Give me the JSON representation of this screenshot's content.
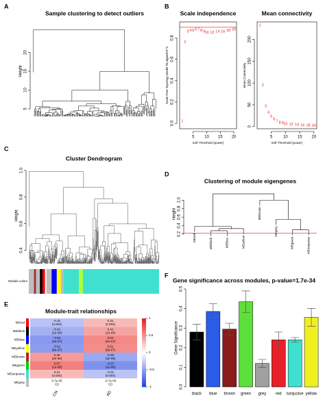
{
  "chart_data": [
    {
      "type": "dendrogram",
      "panel": "A",
      "title": "Sample clustering to detect outliers",
      "ylabel": "Height",
      "ylim": [
        3,
        27
      ],
      "yticks": [
        5,
        10,
        15,
        20
      ]
    },
    {
      "type": "scatter",
      "panel": "B",
      "title": "Scale independence",
      "xlabel": "Soft Threshold (power)",
      "ylabel": "Scale Free Topology Model Fit,signed R^2",
      "x": [
        1,
        2,
        3,
        4,
        5,
        6,
        7,
        8,
        9,
        10,
        12,
        14,
        16,
        18,
        20
      ],
      "values": [
        0.02,
        0.76,
        0.86,
        0.87,
        0.87,
        0.88,
        0.88,
        0.87,
        0.86,
        0.85,
        0.85,
        0.86,
        0.86,
        0.87,
        0.88
      ],
      "color": "#e41a1c",
      "hline": 0.9,
      "hline_color": "#e41a1c",
      "xlim": [
        0,
        21
      ],
      "xticks": [
        5,
        10,
        15,
        20
      ],
      "ylim": [
        -0.05,
        0.95
      ],
      "yticks": [
        {
          "value": 0,
          "label": "0.0"
        },
        0.2,
        0.4,
        0.6,
        0.8
      ]
    },
    {
      "type": "scatter",
      "title": "Mean connectivity",
      "xlabel": "Soft Threshold (power)",
      "ylabel": "Mean Connectivity",
      "x": [
        1,
        2,
        3,
        4,
        5,
        6,
        7,
        8,
        9,
        10,
        12,
        14,
        16,
        18,
        20
      ],
      "values": [
        232,
        95,
        47,
        33,
        23,
        17,
        12,
        9,
        8,
        6,
        5,
        4,
        3,
        3,
        2
      ],
      "color": "#e41a1c",
      "xlim": [
        0,
        21
      ],
      "xticks": [
        5,
        10,
        15,
        20
      ],
      "ylim": [
        -5,
        240
      ],
      "yticks": [
        0,
        50,
        100,
        150,
        200
      ]
    },
    {
      "type": "dendrogram",
      "panel": "C",
      "title": "Cluster Dendrogram",
      "ylabel": "Height",
      "colorbar_label": "Module colors",
      "ylim": [
        0.3,
        1.02
      ],
      "yticks": [
        0.4,
        0.6,
        0.8,
        {
          "value": 1,
          "label": "1.0"
        }
      ]
    },
    {
      "type": "tree",
      "panel": "D",
      "title": "Clustering of module eigengenes",
      "ylabel": "Height",
      "leaves": [
        "MEred",
        "MEblack",
        "MEblue",
        "MEyellow",
        "MEbrown",
        "MEgrey",
        "MEgreen",
        "MEturquoise"
      ],
      "merges": [
        {
          "left": 1,
          "right": 2,
          "height": 0.28
        },
        {
          "left": 8,
          "right": 3,
          "height": 0.33
        },
        {
          "left": 0,
          "right": 9,
          "height": 0.38
        },
        {
          "left": 6,
          "right": 7,
          "height": 0.3
        },
        {
          "left": 5,
          "right": 11,
          "height": 0.55
        },
        {
          "left": 4,
          "right": 12,
          "height": 1.0
        },
        {
          "left": 10,
          "right": 13,
          "height": 1.15
        }
      ],
      "cut_height": 0.22,
      "cut_color": "#e41a1c",
      "ylim": [
        0.15,
        1.2
      ],
      "yticks": [
        0.2,
        0.4,
        0.6,
        0.8,
        {
          "value": 1,
          "label": "1.0"
        }
      ]
    },
    {
      "type": "heatmap",
      "panel": "E",
      "title": "Module-trait relationships",
      "rows": [
        "MEred",
        "MEblack",
        "MEblue",
        "MEyellow",
        "MEbrown",
        "MEgreen",
        "MEturquoise",
        "MEgrey"
      ],
      "row_colors": [
        "#ff0000",
        "#000000",
        "#0000ff",
        "#ffff00",
        "#a52a2a",
        "#00cd00",
        "#40e0d0",
        "#bebebe"
      ],
      "columns": [
        "CN",
        "AD"
      ],
      "values": [
        [
          -0.31,
          0.31
        ],
        [
          -0.41,
          0.41
        ],
        [
          -0.53,
          0.53
        ],
        [
          -0.51,
          0.51
        ],
        [
          0.45,
          -0.45
        ],
        [
          0.57,
          -0.57
        ],
        [
          0.31,
          -0.31
        ],
        [
          9.7e-05,
          -9.7e-05
        ]
      ],
      "value_labels": [
        [
          "-0.31",
          "0.31"
        ],
        [
          "-0.41",
          "0.41"
        ],
        [
          "-0.53",
          "0.53"
        ],
        [
          "-0.51",
          "0.51"
        ],
        [
          "0.45",
          "-0.45"
        ],
        [
          "0.57",
          "-0.57"
        ],
        [
          "0.31",
          "-0.31"
        ],
        [
          "9.7e-05",
          "-9.7e-05"
        ]
      ],
      "p_labels": [
        [
          "(0.004)",
          "(0.004)"
        ],
        [
          "(1e-04)",
          "(1e-04)"
        ],
        [
          "(2e-07)",
          "(2e-07)"
        ],
        [
          "(8e-07)",
          "(8e-07)"
        ],
        [
          "(2e-05)",
          "(2e-05)"
        ],
        [
          "(1e-08)",
          "(1e-08)"
        ],
        [
          "(0.004)",
          "(0.004)"
        ],
        [
          "(1)",
          "(1)"
        ]
      ],
      "colors": [
        "#1f3fe0",
        "#ffffff",
        "#e8201c"
      ],
      "clim": [
        -1,
        1
      ],
      "cticks": [
        -1,
        -0.5,
        0,
        0.5,
        1
      ]
    },
    {
      "type": "bar",
      "panel": "F",
      "title": "Gene significance across modules, p-value=1.7e-34",
      "ylabel": "Gene Significance",
      "categories": [
        "black",
        "blue",
        "brown",
        "green",
        "grey",
        "red",
        "turquoise",
        "yellow"
      ],
      "values": [
        0.28,
        0.385,
        0.295,
        0.435,
        0.12,
        0.24,
        0.24,
        0.355
      ],
      "errors": [
        0.04,
        0.04,
        0.03,
        0.055,
        0.02,
        0.04,
        0.012,
        0.045
      ],
      "colors": [
        "#000000",
        "#2b5ce6",
        "#8b1a1a",
        "#5de03c",
        "#a0a0a0",
        "#e8202a",
        "#40e0d0",
        "#f0f020"
      ],
      "ylim": [
        0,
        0.5
      ],
      "yticks": [
        {
          "value": 0,
          "label": "0.0"
        },
        0.1,
        0.2,
        0.3,
        0.4,
        0.5
      ]
    }
  ]
}
